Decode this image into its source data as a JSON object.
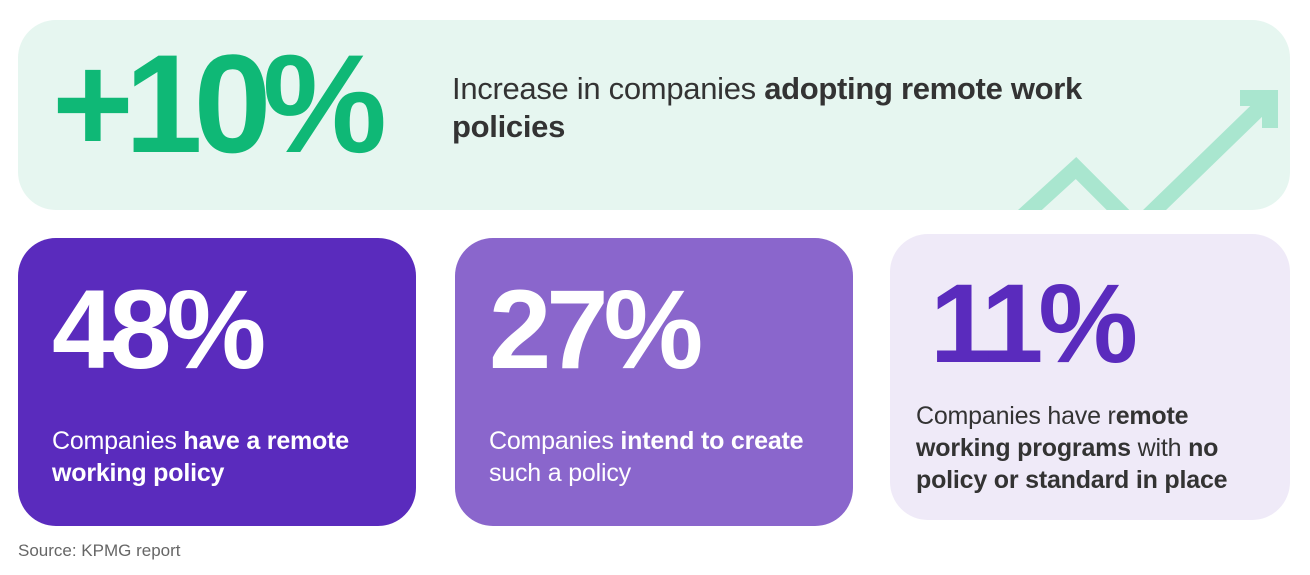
{
  "colors": {
    "banner_bg": "#e6f6f0",
    "banner_accent": "#0fb876",
    "arrow": "#a9e6cf",
    "card1_bg": "#5a2bbd",
    "card2_bg": "#8a66cc",
    "card3_bg": "#efeaf8",
    "text_dark": "#333333"
  },
  "banner": {
    "stat": "+10%",
    "text_plain": "Increase in companies ",
    "text_bold": "adopting remote work policies",
    "icon": "trend-up-arrow-icon"
  },
  "cards": [
    {
      "stat": "48%",
      "text_plain_1": "Companies ",
      "text_bold_1": "have a remote working policy"
    },
    {
      "stat": "27%",
      "text_plain_1": "Companies ",
      "text_bold_1": "intend to create",
      "text_plain_2": " such a policy"
    },
    {
      "stat": "11%",
      "text_plain_1": "Companies have r",
      "text_bold_1": "emote working programs",
      "text_plain_2": " with ",
      "text_bold_2": "no policy or standard in place"
    }
  ],
  "source": "Source: KPMG report"
}
